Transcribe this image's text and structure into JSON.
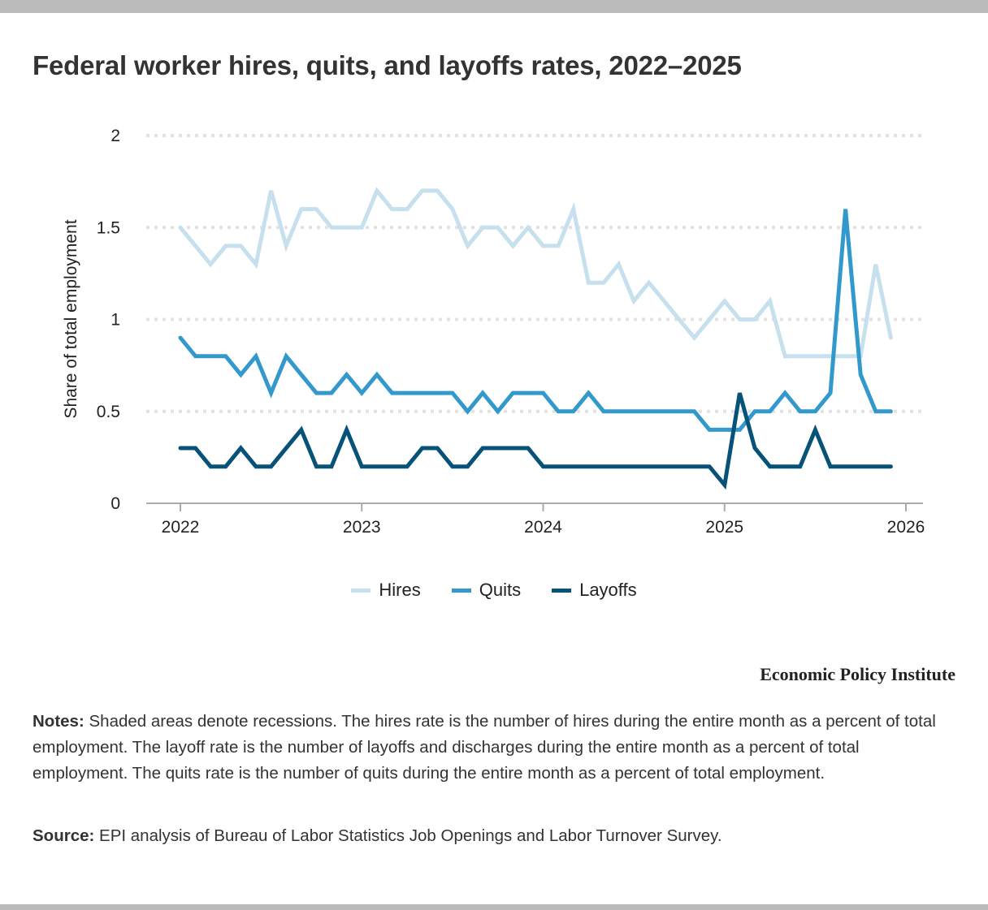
{
  "chart_data": {
    "type": "line",
    "title": "Federal worker hires, quits, and layoffs rates, 2022–2025",
    "xlabel": "",
    "ylabel": "Share of total employment",
    "ylim": [
      0,
      2
    ],
    "xlim": [
      2022,
      2026
    ],
    "yticks": [
      "0",
      "0.5",
      "1",
      "1.5",
      "2"
    ],
    "xticks": [
      "2022",
      "2023",
      "2024",
      "2025",
      "2026"
    ],
    "grid": "horizontal dotted",
    "legend_position": "bottom",
    "x": [
      "2022-01",
      "2022-02",
      "2022-03",
      "2022-04",
      "2022-05",
      "2022-06",
      "2022-07",
      "2022-08",
      "2022-09",
      "2022-10",
      "2022-11",
      "2022-12",
      "2023-01",
      "2023-02",
      "2023-03",
      "2023-04",
      "2023-05",
      "2023-06",
      "2023-07",
      "2023-08",
      "2023-09",
      "2023-10",
      "2023-11",
      "2023-12",
      "2024-01",
      "2024-02",
      "2024-03",
      "2024-04",
      "2024-05",
      "2024-06",
      "2024-07",
      "2024-08",
      "2024-09",
      "2024-10",
      "2024-11",
      "2024-12",
      "2025-01",
      "2025-02",
      "2025-03",
      "2025-04",
      "2025-05",
      "2025-06",
      "2025-07",
      "2025-08",
      "2025-09",
      "2025-10",
      "2025-11",
      "2025-12"
    ],
    "series": [
      {
        "name": "Hires",
        "color": "#c6e0ee",
        "values": [
          1.5,
          1.4,
          1.3,
          1.4,
          1.4,
          1.3,
          1.7,
          1.4,
          1.6,
          1.6,
          1.5,
          1.5,
          1.5,
          1.7,
          1.6,
          1.6,
          1.7,
          1.7,
          1.6,
          1.4,
          1.5,
          1.5,
          1.4,
          1.5,
          1.4,
          1.4,
          1.6,
          1.2,
          1.2,
          1.3,
          1.1,
          1.2,
          1.1,
          1.0,
          0.9,
          1.0,
          1.1,
          1.0,
          1.0,
          1.1,
          0.8,
          0.8,
          0.8,
          0.8,
          0.8,
          0.8,
          1.3,
          0.9
        ]
      },
      {
        "name": "Quits",
        "color": "#3399cc",
        "values": [
          0.9,
          0.8,
          0.8,
          0.8,
          0.7,
          0.8,
          0.6,
          0.8,
          0.7,
          0.6,
          0.6,
          0.7,
          0.6,
          0.7,
          0.6,
          0.6,
          0.6,
          0.6,
          0.6,
          0.5,
          0.6,
          0.5,
          0.6,
          0.6,
          0.6,
          0.5,
          0.5,
          0.6,
          0.5,
          0.5,
          0.5,
          0.5,
          0.5,
          0.5,
          0.5,
          0.4,
          0.4,
          0.4,
          0.5,
          0.5,
          0.6,
          0.5,
          0.5,
          0.6,
          1.6,
          0.7,
          0.5,
          0.5
        ]
      },
      {
        "name": "Layoffs",
        "color": "#065279",
        "values": [
          0.3,
          0.3,
          0.2,
          0.2,
          0.3,
          0.2,
          0.2,
          0.3,
          0.4,
          0.2,
          0.2,
          0.4,
          0.2,
          0.2,
          0.2,
          0.2,
          0.3,
          0.3,
          0.2,
          0.2,
          0.3,
          0.3,
          0.3,
          0.3,
          0.2,
          0.2,
          0.2,
          0.2,
          0.2,
          0.2,
          0.2,
          0.2,
          0.2,
          0.2,
          0.2,
          0.2,
          0.1,
          0.6,
          0.3,
          0.2,
          0.2,
          0.2,
          0.4,
          0.2,
          0.2,
          0.2,
          0.2,
          0.2
        ]
      }
    ]
  },
  "brand": "Economic Policy Institute",
  "notes": {
    "label": "Notes:",
    "text": " Shaded areas denote recessions. The hires rate is the number of hires during the entire month as a percent of total employment. The layoff rate is the number of layoffs and discharges during the entire month as a percent of total employment. The quits rate is the number of quits during the entire month as a percent of total employment."
  },
  "source": {
    "label": "Source:",
    "text": " EPI analysis of Bureau of Labor Statistics Job Openings and Labor Turnover Survey."
  }
}
